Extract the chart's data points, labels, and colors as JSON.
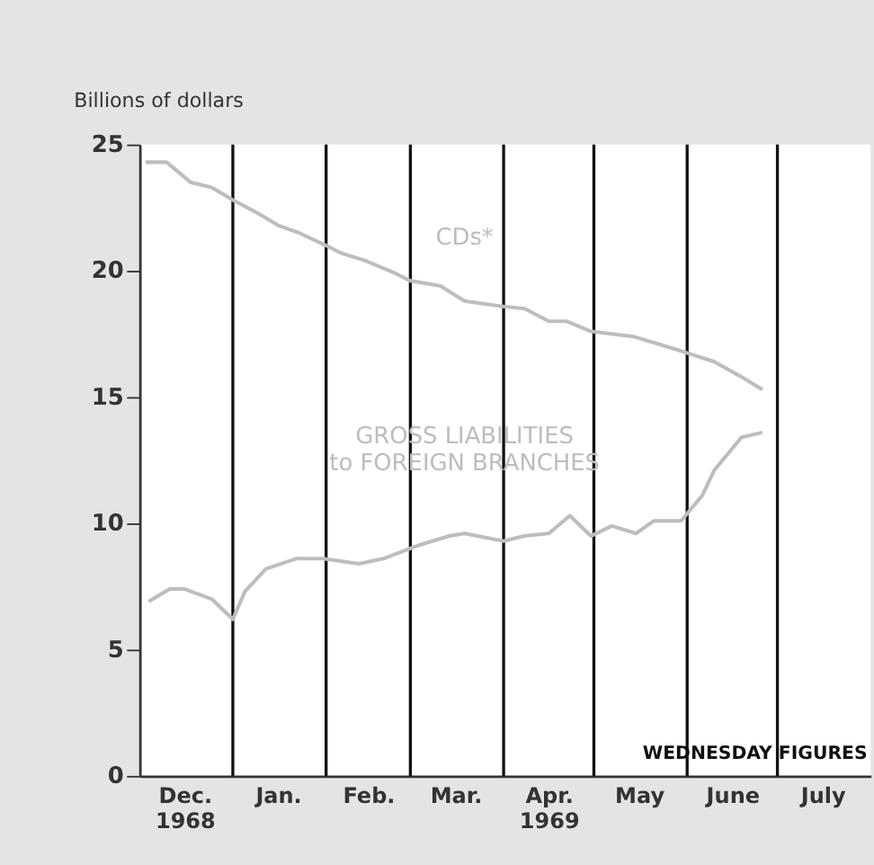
{
  "chart_data": {
    "type": "line",
    "ylabel": "Billions of dollars",
    "xlim": [
      "1968-12-01",
      "1969-08-01"
    ],
    "ylim": [
      0,
      25
    ],
    "yticks": [
      0,
      5,
      10,
      15,
      20,
      25
    ],
    "xticks": [
      {
        "value": "1968-12-16",
        "label": "Dec.\n1968"
      },
      {
        "value": "1969-01-16",
        "label": "Jan."
      },
      {
        "value": "1969-02-15",
        "label": "Feb."
      },
      {
        "value": "1969-03-16",
        "label": "Mar."
      },
      {
        "value": "1969-04-16",
        "label": "Apr.\n1969"
      },
      {
        "value": "1969-05-16",
        "label": "May"
      },
      {
        "value": "1969-06-16",
        "label": "June"
      },
      {
        "value": "1969-07-16",
        "label": "July"
      }
    ],
    "grid": false,
    "marker": "none",
    "line_style": "solid",
    "ref_lines": [
      {
        "axis": "x",
        "value": "1969-01-01",
        "color": "#111111"
      },
      {
        "axis": "x",
        "value": "1969-02-01",
        "color": "#111111"
      },
      {
        "axis": "x",
        "value": "1969-03-01",
        "color": "#111111"
      },
      {
        "axis": "x",
        "value": "1969-04-01",
        "color": "#111111"
      },
      {
        "axis": "x",
        "value": "1969-05-01",
        "color": "#111111"
      },
      {
        "axis": "x",
        "value": "1969-06-01",
        "color": "#111111"
      },
      {
        "axis": "x",
        "value": "1969-07-01",
        "color": "#111111"
      }
    ],
    "series": [
      {
        "name": "CDs*",
        "color": "#bdbdbd",
        "x": [
          "1968-12-03",
          "1968-12-10",
          "1968-12-18",
          "1968-12-25",
          "1969-01-01",
          "1969-01-09",
          "1969-01-16",
          "1969-01-23",
          "1969-02-01",
          "1969-02-06",
          "1969-02-14",
          "1969-02-24",
          "1969-03-01",
          "1969-03-11",
          "1969-03-19",
          "1969-03-31",
          "1969-04-08",
          "1969-04-16",
          "1969-04-22",
          "1969-04-30",
          "1969-05-14",
          "1969-05-28",
          "1969-06-10",
          "1969-06-19",
          "1969-06-26"
        ],
        "values": [
          24.3,
          24.3,
          23.5,
          23.3,
          22.8,
          22.3,
          21.8,
          21.5,
          21.0,
          20.7,
          20.4,
          19.9,
          19.6,
          19.4,
          18.8,
          18.6,
          18.5,
          18.0,
          18.0,
          17.6,
          17.4,
          16.9,
          16.4,
          15.8,
          15.3
        ]
      },
      {
        "name": "GROSS LIABILITIES\nto FOREIGN BRANCHES",
        "color": "#bdbdbd",
        "x": [
          "1968-12-04",
          "1968-12-11",
          "1968-12-16",
          "1968-12-25",
          "1969-01-01",
          "1969-01-05",
          "1969-01-12",
          "1969-01-22",
          "1969-01-31",
          "1969-02-12",
          "1969-02-20",
          "1969-03-03",
          "1969-03-14",
          "1969-03-19",
          "1969-04-01",
          "1969-04-08",
          "1969-04-16",
          "1969-04-23",
          "1969-04-30",
          "1969-05-07",
          "1969-05-15",
          "1969-05-21",
          "1969-05-30",
          "1969-06-06",
          "1969-06-10",
          "1969-06-19",
          "1969-06-26"
        ],
        "values": [
          6.9,
          7.4,
          7.4,
          7.0,
          6.2,
          7.3,
          8.2,
          8.6,
          8.6,
          8.4,
          8.6,
          9.1,
          9.5,
          9.6,
          9.3,
          9.5,
          9.6,
          10.3,
          9.5,
          9.9,
          9.6,
          10.1,
          10.1,
          11.1,
          12.1,
          13.4,
          13.6
        ]
      }
    ],
    "annotations": [
      "WEDNESDAY FIGURES"
    ]
  }
}
